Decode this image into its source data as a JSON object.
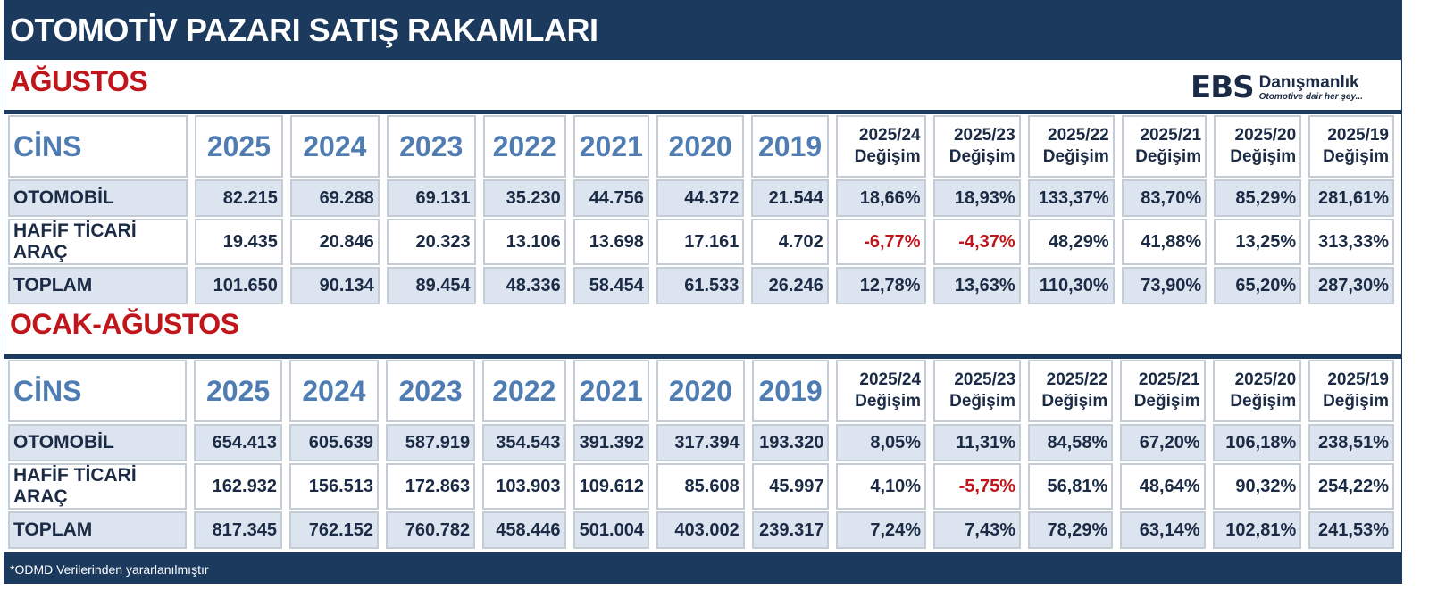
{
  "title": "OTOMOTİV PAZARI SATIŞ RAKAMLARI",
  "logo": {
    "ebs": "EBS",
    "name": "Danışmanlık",
    "slogan": "Otomotive dair her şey..."
  },
  "colors": {
    "navy": "#1b3a5e",
    "red": "#c0161b",
    "header_blue": "#4f7db3",
    "row_shade": "#dce4ef"
  },
  "columns": [
    "CİNS",
    "2025",
    "2024",
    "2023",
    "2022",
    "2021",
    "2020",
    "2019"
  ],
  "change_columns": [
    {
      "period": "2025/24",
      "label": "Değişim"
    },
    {
      "period": "2025/23",
      "label": "Değişim"
    },
    {
      "period": "2025/22",
      "label": "Değişim"
    },
    {
      "period": "2025/21",
      "label": "Değişim"
    },
    {
      "period": "2025/20",
      "label": "Değişim"
    },
    {
      "period": "2025/19",
      "label": "Değişim"
    }
  ],
  "sections": [
    {
      "label": "AĞUSTOS",
      "rows": [
        {
          "name": "OTOMOBİL",
          "values": [
            "82.215",
            "69.288",
            "69.131",
            "35.230",
            "44.756",
            "44.372",
            "21.544",
            "18,66%",
            "18,93%",
            "133,37%",
            "83,70%",
            "85,29%",
            "281,61%"
          ]
        },
        {
          "name": "HAFİF TİCARİ ARAÇ",
          "values": [
            "19.435",
            "20.846",
            "20.323",
            "13.106",
            "13.698",
            "17.161",
            "4.702",
            "-6,77%",
            "-4,37%",
            "48,29%",
            "41,88%",
            "13,25%",
            "313,33%"
          ]
        },
        {
          "name": "TOPLAM",
          "values": [
            "101.650",
            "90.134",
            "89.454",
            "48.336",
            "58.454",
            "61.533",
            "26.246",
            "12,78%",
            "13,63%",
            "110,30%",
            "73,90%",
            "65,20%",
            "287,30%"
          ]
        }
      ]
    },
    {
      "label": "OCAK-AĞUSTOS",
      "rows": [
        {
          "name": "OTOMOBİL",
          "values": [
            "654.413",
            "605.639",
            "587.919",
            "354.543",
            "391.392",
            "317.394",
            "193.320",
            "8,05%",
            "11,31%",
            "84,58%",
            "67,20%",
            "106,18%",
            "238,51%"
          ]
        },
        {
          "name": "HAFİF TİCARİ ARAÇ",
          "values": [
            "162.932",
            "156.513",
            "172.863",
            "103.903",
            "109.612",
            "85.608",
            "45.997",
            "4,10%",
            "-5,75%",
            "56,81%",
            "48,64%",
            "90,32%",
            "254,22%"
          ]
        },
        {
          "name": "TOPLAM",
          "values": [
            "817.345",
            "762.152",
            "760.782",
            "458.446",
            "501.004",
            "403.002",
            "239.317",
            "7,24%",
            "7,43%",
            "78,29%",
            "63,14%",
            "102,81%",
            "241,53%"
          ]
        }
      ]
    }
  ],
  "footer": "*ODMD Verilerinden yararlanılmıştır"
}
